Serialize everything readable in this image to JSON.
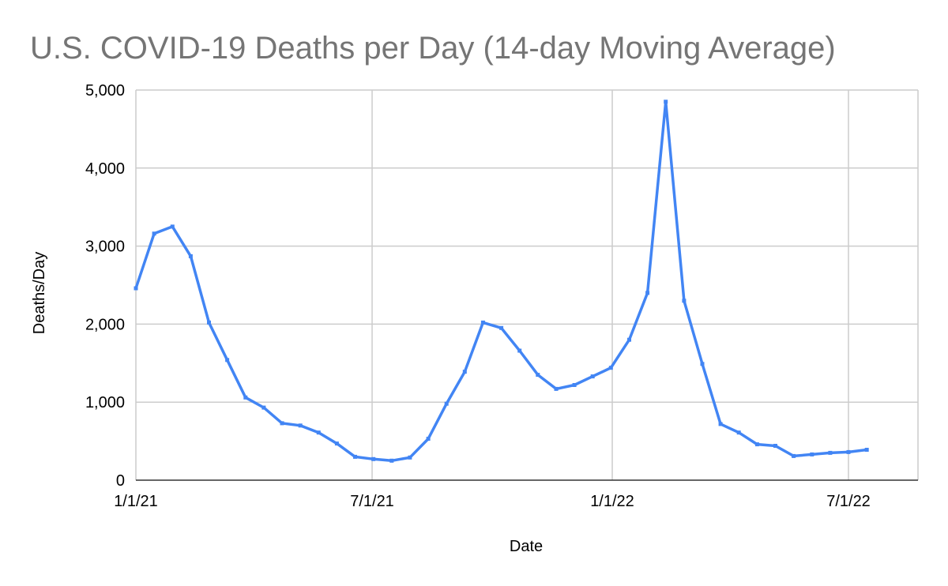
{
  "chart_data": {
    "type": "line",
    "title": "U.S. COVID-19 Deaths per Day (14-day Moving Average)",
    "xlabel": "Date",
    "ylabel": "Deaths/Day",
    "ylim": [
      0,
      5000
    ],
    "y_ticks": [
      0,
      1000,
      2000,
      3000,
      4000,
      5000
    ],
    "y_tick_labels": [
      "0",
      "1,000",
      "2,000",
      "3,000",
      "4,000",
      "5,000"
    ],
    "x_range_days": [
      0,
      572
    ],
    "x_ticks": [
      {
        "label": "1/1/21",
        "day": 0
      },
      {
        "label": "7/1/21",
        "day": 181
      },
      {
        "label": "1/1/22",
        "day": 365
      },
      {
        "label": "7/1/22",
        "day": 546
      }
    ],
    "grid": true,
    "line_color": "#4285f4",
    "series": [
      {
        "name": "Deaths/Day",
        "x_days": [
          0,
          14,
          28,
          42,
          56,
          70,
          84,
          98,
          112,
          126,
          140,
          154,
          168,
          182,
          196,
          210,
          224,
          238,
          252,
          266,
          280,
          294,
          308,
          322,
          336,
          350,
          364,
          378,
          392,
          406,
          420,
          434,
          448,
          462,
          476,
          490,
          504,
          518,
          532,
          546,
          560
        ],
        "values": [
          2460,
          3160,
          3250,
          2870,
          2020,
          1540,
          1060,
          930,
          730,
          700,
          610,
          470,
          300,
          270,
          250,
          290,
          530,
          980,
          1390,
          2020,
          1950,
          1660,
          1350,
          1170,
          1220,
          1330,
          1440,
          1800,
          2400,
          4850,
          2300,
          1490,
          720,
          610,
          460,
          440,
          310,
          330,
          350,
          360,
          390
        ]
      }
    ]
  }
}
